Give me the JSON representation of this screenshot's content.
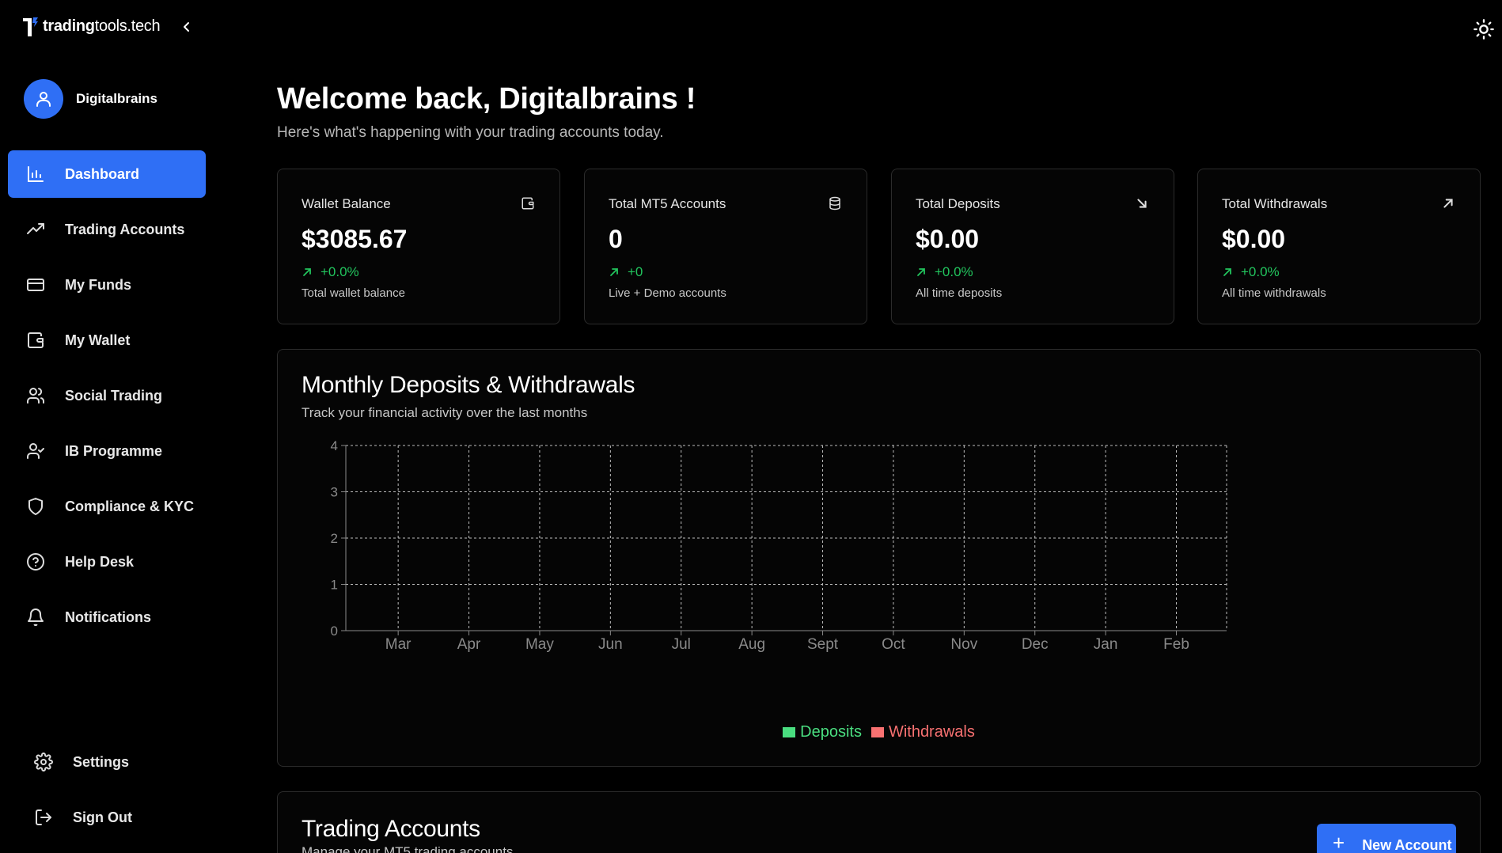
{
  "brand": {
    "name_bold": "trading",
    "name_rest": "tools.tech"
  },
  "user": {
    "name": "Digitalbrains"
  },
  "sidebar": {
    "items": [
      {
        "label": "Dashboard",
        "icon": "bar-chart-icon",
        "active": true
      },
      {
        "label": "Trading Accounts",
        "icon": "trending-up-icon"
      },
      {
        "label": "My Funds",
        "icon": "credit-card-icon"
      },
      {
        "label": "My Wallet",
        "icon": "wallet-icon"
      },
      {
        "label": "Social Trading",
        "icon": "users-icon"
      },
      {
        "label": "IB Programme",
        "icon": "user-check-icon"
      },
      {
        "label": "Compliance & KYC",
        "icon": "shield-icon"
      },
      {
        "label": "Help Desk",
        "icon": "help-circle-icon"
      },
      {
        "label": "Notifications",
        "icon": "bell-icon"
      }
    ],
    "bottom": [
      {
        "label": "Settings",
        "icon": "gear-icon"
      },
      {
        "label": "Sign Out",
        "icon": "sign-out-icon"
      }
    ]
  },
  "header": {
    "welcome": "Welcome back, Digitalbrains !",
    "subtitle": "Here's what's happening with your trading accounts today."
  },
  "stats": [
    {
      "title": "Wallet Balance",
      "value": "$3085.67",
      "change": "+0.0%",
      "note": "Total wallet balance",
      "icon": "wallet-icon"
    },
    {
      "title": "Total MT5 Accounts",
      "value": "0",
      "change": "+0",
      "note": "Live + Demo accounts",
      "icon": "database-icon"
    },
    {
      "title": "Total Deposits",
      "value": "$0.00",
      "change": "+0.0%",
      "note": "All time deposits",
      "icon": "arrow-down-right-icon"
    },
    {
      "title": "Total Withdrawals",
      "value": "$0.00",
      "change": "+0.0%",
      "note": "All time withdrawals",
      "icon": "arrow-up-right-icon"
    }
  ],
  "chart": {
    "title": "Monthly Deposits & Withdrawals",
    "subtitle": "Track your financial activity over the last months"
  },
  "chart_data": {
    "type": "bar",
    "categories": [
      "Mar",
      "Apr",
      "May",
      "Jun",
      "Jul",
      "Aug",
      "Sept",
      "Oct",
      "Nov",
      "Dec",
      "Jan",
      "Feb"
    ],
    "series": [
      {
        "name": "Deposits",
        "values": [
          0,
          0,
          0,
          0,
          0,
          0,
          0,
          0,
          0,
          0,
          0,
          0
        ],
        "color": "#4ade80"
      },
      {
        "name": "Withdrawals",
        "values": [
          0,
          0,
          0,
          0,
          0,
          0,
          0,
          0,
          0,
          0,
          0,
          0
        ],
        "color": "#f87171"
      }
    ],
    "yticks": [
      "0",
      "1",
      "2",
      "3",
      "4"
    ],
    "ylim": [
      0,
      4
    ],
    "grid": true,
    "legend": "bottom"
  },
  "trading_accounts": {
    "title": "Trading Accounts",
    "subtitle": "Manage your MT5 trading accounts",
    "new_button": "New Account"
  },
  "colors": {
    "accent": "#2f6ff5",
    "positive": "#22c55e",
    "deposits": "#4ade80",
    "withdrawals": "#f87171"
  }
}
